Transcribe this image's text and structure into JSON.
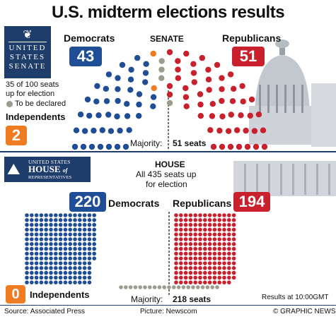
{
  "title": "U.S. midterm elections results",
  "senate": {
    "seal_lines": [
      "UNITED",
      "STATES",
      "SENATE"
    ],
    "heading": "SENATE",
    "dem_label": "Democrats",
    "rep_label": "Republicans",
    "dem_count": "43",
    "rep_count": "51",
    "seats_note_line1": "35 of 100 seats",
    "seats_note_line2": "up for election",
    "to_be_declared": "To be declared",
    "independents_label": "Independents",
    "independents_count": "2",
    "majority_label": "Majority:",
    "majority_value": "51 seats"
  },
  "house": {
    "seal_line1": "UNITED STATES",
    "seal_line2": "HOUSE",
    "seal_of": "of",
    "seal_line3": "REPRESENTATIVES",
    "heading": "HOUSE",
    "note_line1": "All 435 seats up",
    "note_line2": "for election",
    "dem_label": "Democrats",
    "rep_label": "Republicans",
    "dem_count": "220",
    "rep_count": "194",
    "independents_count": "0",
    "independents_label": "Independents",
    "majority_label": "Majority:",
    "majority_value": "218 seats",
    "results_time": "Results at 10:00GMT"
  },
  "footer": {
    "source": "Source: Associated Press",
    "picture": "Picture: Newscom",
    "credit": "© GRAPHIC NEWS"
  },
  "colors": {
    "democrat": "#1f4e96",
    "republican": "#c8202c",
    "independent": "#ef7b22",
    "undeclared": "#9c9c8e",
    "navy": "#1f3d6b"
  },
  "chart_data": [
    {
      "type": "parliament",
      "chamber": "Senate",
      "total_seats": 100,
      "majority": 51,
      "series": [
        {
          "name": "Democrats",
          "value": 43
        },
        {
          "name": "Independents",
          "value": 2
        },
        {
          "name": "To be declared",
          "value": 4
        },
        {
          "name": "Republicans",
          "value": 51
        }
      ]
    },
    {
      "type": "seat-grid",
      "chamber": "House",
      "total_seats": 435,
      "majority": 218,
      "series": [
        {
          "name": "Democrats",
          "value": 220
        },
        {
          "name": "Independents",
          "value": 0
        },
        {
          "name": "Republicans",
          "value": 194
        }
      ],
      "undeclared": 21
    }
  ]
}
